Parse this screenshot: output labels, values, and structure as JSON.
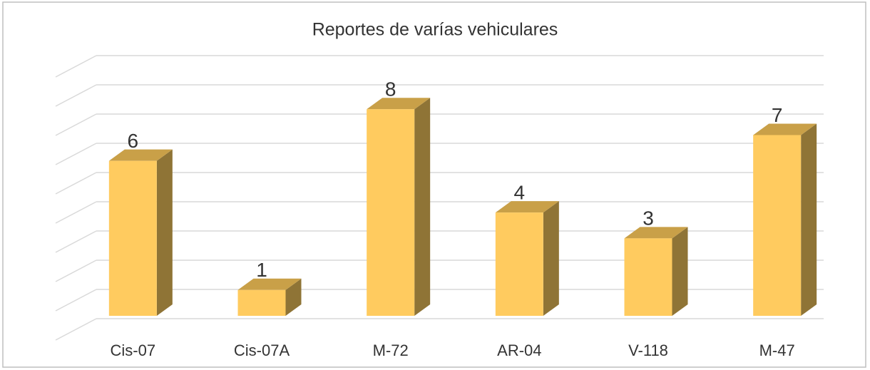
{
  "chart_data": {
    "type": "bar3d",
    "title": "Reportes de varías vehiculares",
    "categories": [
      "Cis-07",
      "Cis-07A",
      "M-72",
      "AR-04",
      "V-118",
      "M-47"
    ],
    "values": [
      6,
      1,
      8,
      4,
      3,
      7
    ],
    "color": "#ffcb5f",
    "ylim": [
      0,
      9
    ],
    "yticks": [
      0,
      1,
      2,
      3,
      4,
      5,
      6,
      7,
      8,
      9
    ],
    "grid": true
  }
}
